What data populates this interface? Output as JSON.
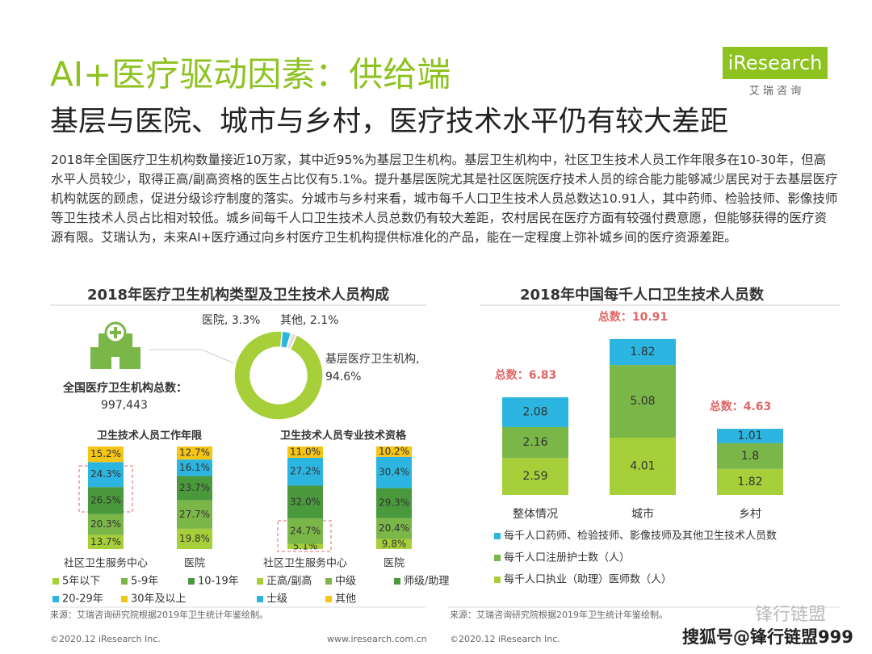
{
  "header": {
    "title": "AI+医疗驱动因素：供给端",
    "subtitle": "基层与医院、城市与乡村，医疗技术水平仍有较大差距",
    "logo": "iResearch",
    "logo_sub": "艾 瑞 咨 询"
  },
  "body": "2018年全国医疗卫生机构数量接近10万家，其中近95%为基层卫生机构。基层卫生机构中，社区卫生技术人员工作年限多在10-30年，但高水平人员较少，取得正高/副高资格的医生占比仅有5.1%。提升基层医院尤其是社区医院医疗技术人员的综合能力能够减少居民对于去基层医疗机构就医的顾虑，促进分级诊疗制度的落实。分城市与乡村来看，城市每千人口卫生技术人员总数达10.91人，其中药师、检验技师、影像技师等卫生技术人员占比相对较低。城乡间每千人口卫生技术人员总数仍有较大差距，农村居民在医疗方面有较强付费意愿，但能够获得的医疗资源有限。艾瑞认为，未来AI+医疗通过向乡村医疗卫生机构提供标准化的产品，能在一定程度上弥补城乡间的医疗资源差距。",
  "left_title": "2018年医疗卫生机构类型及卫生技术人员构成",
  "chart_data": [
    {
      "type": "pie",
      "values": [
        94.6,
        3.3,
        2.1
      ],
      "value_labels": [
        "基层医疗卫生机构, 94.6%",
        "医院, 3.3%",
        "其他, 2.1%"
      ],
      "colors": [
        "#a6cf3a",
        "#2cb5e0",
        "#e3e3e3"
      ],
      "total_title": "全国医疗卫生机构总数：",
      "total": {
        "value": 997443,
        "label": "997,443"
      }
    },
    {
      "type": "stacked_bar",
      "title": "卫生技术人员工作年限",
      "categories": [
        "社区卫生服务中心",
        "医院"
      ],
      "series": [
        {
          "name": "5年以下",
          "color": "#a6cf3a",
          "values": [
            13.7,
            19.8
          ],
          "value_labels": [
            "13.7%",
            "19.8%"
          ]
        },
        {
          "name": "5-9年",
          "color": "#7ab648",
          "values": [
            20.3,
            27.7
          ],
          "value_labels": [
            "20.3%",
            "27.7%"
          ]
        },
        {
          "name": "10-19年",
          "color": "#4a9a3d",
          "values": [
            26.5,
            23.7
          ],
          "value_labels": [
            "26.5%",
            "23.7%"
          ]
        },
        {
          "name": "20-29年",
          "color": "#2cb5e0",
          "values": [
            24.3,
            16.1
          ],
          "value_labels": [
            "24.3%",
            "16.1%"
          ]
        },
        {
          "name": "30年及以上",
          "color": "#f5c518",
          "values": [
            15.2,
            12.7
          ],
          "value_labels": [
            "15.2%",
            "12.7%"
          ]
        }
      ]
    },
    {
      "type": "stacked_bar",
      "title": "卫生技术人员专业技术资格",
      "categories": [
        "社区卫生服务中心",
        "医院"
      ],
      "series": [
        {
          "name": "正高/副高",
          "color": "#a6cf3a",
          "values": [
            5.1,
            9.8
          ],
          "value_labels": [
            "5.1%",
            "9.8%"
          ]
        },
        {
          "name": "中级",
          "color": "#7ab648",
          "values": [
            24.7,
            20.4
          ],
          "value_labels": [
            "24.7%",
            "20.4%"
          ]
        },
        {
          "name": "师级/助理",
          "color": "#4a9a3d",
          "values": [
            32.0,
            29.3
          ],
          "value_labels": [
            "32.0%",
            "29.3%"
          ]
        },
        {
          "name": "士级",
          "color": "#2cb5e0",
          "values": [
            27.2,
            30.4
          ],
          "value_labels": [
            "27.2%",
            "30.4%"
          ]
        },
        {
          "name": "其他",
          "color": "#f5c518",
          "values": [
            11.0,
            10.2
          ],
          "value_labels": [
            "11.0%",
            "10.2%"
          ]
        }
      ]
    },
    {
      "type": "stacked_bar",
      "title": "2018年中国每千人口卫生技术人员数",
      "categories": [
        "整体情况",
        "城市",
        "乡村"
      ],
      "series": [
        {
          "name": "每千人口执业（助理）医师数（人）",
          "color": "#a6cf3a",
          "values": [
            2.59,
            4.01,
            1.82
          ]
        },
        {
          "name": "每千人口注册护士数（人）",
          "color": "#7ab648",
          "values": [
            2.16,
            5.08,
            1.8
          ]
        },
        {
          "name": "每千人口药师、检验技师、影像技师及其他卫生技术人员数",
          "color": "#2cb5e0",
          "values": [
            2.08,
            1.82,
            1.01
          ]
        }
      ],
      "totals": [
        {
          "value": 6.83,
          "label": "总数：6.83"
        },
        {
          "value": 10.91,
          "label": "总数：10.91"
        },
        {
          "value": 4.63,
          "label": "总数：4.63"
        }
      ]
    }
  ],
  "footer": {
    "source_left": "来源：艾瑞咨询研究院根据2019年卫生统计年鉴绘制。",
    "source_right": "来源：艾瑞咨询研究院根据2019年卫生统计年鉴绘制。",
    "copyright_left": "©2020.12 iResearch Inc.",
    "website": "www.iresearch.com.cn",
    "copyright_right": "©2020.12 iResearch Inc.",
    "watermark": "锋行链盟",
    "watermark_sub": "搜狐号@锋行链盟999"
  }
}
